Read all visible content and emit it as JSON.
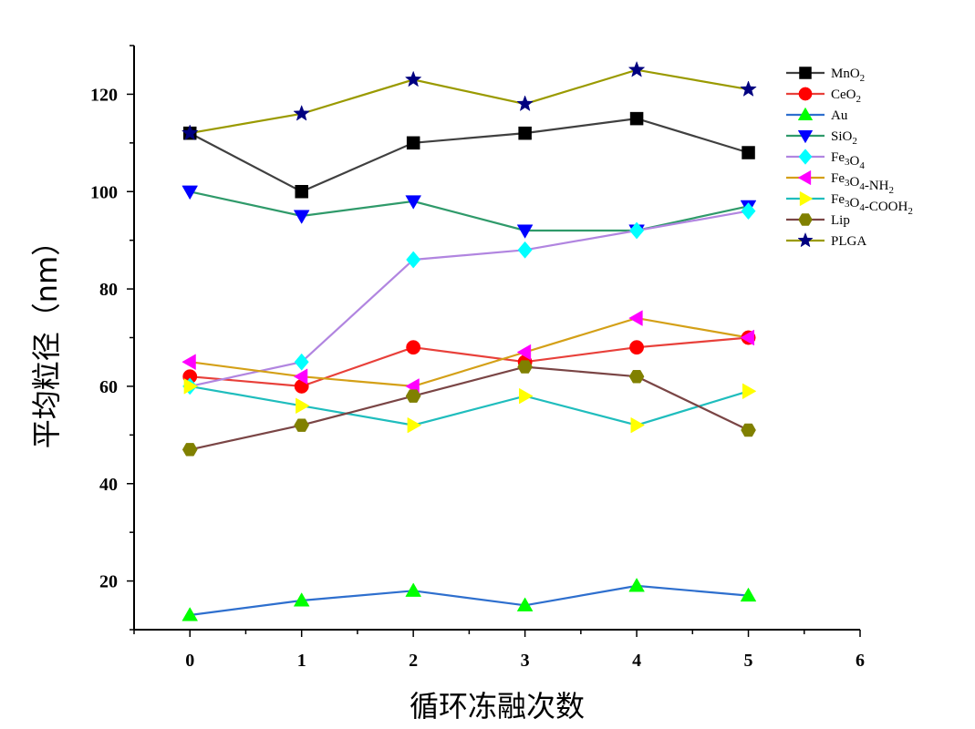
{
  "chart_data": {
    "type": "line",
    "xlabel": "循环冻融次数",
    "ylabel": "平均粒径（nm）",
    "xlim": [
      -0.5,
      6
    ],
    "ylim": [
      10,
      130
    ],
    "xticks": [
      0,
      1,
      2,
      3,
      4,
      5,
      6
    ],
    "yticks": [
      20,
      40,
      60,
      80,
      100,
      120
    ],
    "grid": false,
    "legend_position": "top-right",
    "x": [
      0,
      1,
      2,
      3,
      4,
      5
    ],
    "series": [
      {
        "name": "MnO2",
        "label_main": "MnO",
        "label_parts": [
          [
            "MnO",
            ""
          ],
          [
            "2",
            "sub"
          ]
        ],
        "values": [
          112,
          100,
          110,
          112,
          115,
          108
        ],
        "line_color": "#404040",
        "marker_color": "#000000",
        "marker": "square"
      },
      {
        "name": "CeO2",
        "label_parts": [
          [
            "CeO",
            ""
          ],
          [
            "2",
            "sub"
          ]
        ],
        "values": [
          62,
          60,
          68,
          65,
          68,
          70
        ],
        "line_color": "#e8403a",
        "marker_color": "#ff0000",
        "marker": "circle"
      },
      {
        "name": "Au",
        "label_parts": [
          [
            "Au",
            ""
          ]
        ],
        "values": [
          13,
          16,
          18,
          15,
          19,
          17
        ],
        "line_color": "#2e6fce",
        "marker_color": "#00ff00",
        "marker": "triangle-up"
      },
      {
        "name": "SiO2",
        "label_parts": [
          [
            "SiO",
            ""
          ],
          [
            "2",
            "sub"
          ]
        ],
        "values": [
          100,
          95,
          98,
          92,
          92,
          97
        ],
        "line_color": "#2f9a6a",
        "marker_color": "#0000ff",
        "marker": "triangle-down"
      },
      {
        "name": "Fe3O4",
        "label_parts": [
          [
            "Fe",
            ""
          ],
          [
            "3",
            "sub"
          ],
          [
            "O",
            ""
          ],
          [
            "4",
            "sub"
          ]
        ],
        "values": [
          60,
          65,
          86,
          88,
          92,
          96
        ],
        "line_color": "#b185e0",
        "marker_color": "#00ffff",
        "marker": "diamond"
      },
      {
        "name": "Fe3O4-NH2",
        "label_parts": [
          [
            "Fe",
            ""
          ],
          [
            "3",
            "sub"
          ],
          [
            "O",
            ""
          ],
          [
            "4",
            "sub"
          ],
          [
            "-NH",
            ""
          ],
          [
            "2",
            "sub"
          ]
        ],
        "values": [
          65,
          62,
          60,
          67,
          74,
          70
        ],
        "line_color": "#d4a017",
        "marker_color": "#ff00ff",
        "marker": "triangle-left"
      },
      {
        "name": "Fe3O4-COOH2",
        "label_parts": [
          [
            "Fe",
            ""
          ],
          [
            "3",
            "sub"
          ],
          [
            "O",
            ""
          ],
          [
            "4",
            "sub"
          ],
          [
            "-COOH",
            ""
          ],
          [
            "2",
            "sub"
          ]
        ],
        "values": [
          60,
          56,
          52,
          58,
          52,
          59
        ],
        "line_color": "#1fbdbd",
        "marker_color": "#ffff00",
        "marker": "triangle-right"
      },
      {
        "name": "Lip",
        "label_parts": [
          [
            "Lip",
            ""
          ]
        ],
        "values": [
          47,
          52,
          58,
          64,
          62,
          51
        ],
        "line_color": "#7a4545",
        "marker_color": "#808000",
        "marker": "hexagon"
      },
      {
        "name": "PLGA",
        "label_parts": [
          [
            "PLGA",
            ""
          ]
        ],
        "values": [
          112,
          116,
          123,
          118,
          125,
          121
        ],
        "line_color": "#9a9a00",
        "marker_color": "#000080",
        "marker": "star"
      }
    ]
  }
}
